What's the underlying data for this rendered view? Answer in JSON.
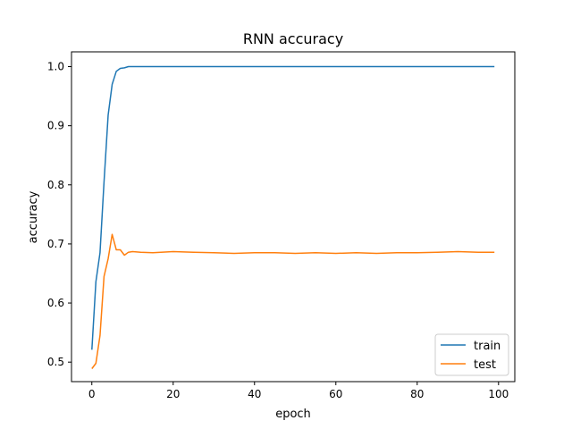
{
  "chart_data": {
    "type": "line",
    "title": "RNN accuracy",
    "xlabel": "epoch",
    "ylabel": "accuracy",
    "xlim": [
      -5,
      104
    ],
    "ylim": [
      0.467,
      1.025
    ],
    "xticks": [
      0,
      20,
      40,
      60,
      80,
      100
    ],
    "yticks": [
      0.5,
      0.6,
      0.7,
      0.8,
      0.9,
      1.0
    ],
    "xtick_labels": [
      "0",
      "20",
      "40",
      "60",
      "80",
      "100"
    ],
    "ytick_labels": [
      "0.5",
      "0.6",
      "0.7",
      "0.8",
      "0.9",
      "1.0"
    ],
    "grid": false,
    "legend_position": "bottom-right",
    "series": [
      {
        "name": "train",
        "color": "#1f77b4",
        "x": [
          0,
          1,
          2,
          3,
          4,
          5,
          6,
          7,
          8,
          9,
          10,
          15,
          20,
          25,
          30,
          35,
          40,
          45,
          50,
          55,
          60,
          65,
          70,
          75,
          80,
          85,
          90,
          95,
          99
        ],
        "y": [
          0.521,
          0.636,
          0.685,
          0.805,
          0.918,
          0.97,
          0.992,
          0.997,
          0.998,
          1.0,
          1.0,
          1.0,
          1.0,
          1.0,
          1.0,
          1.0,
          1.0,
          1.0,
          1.0,
          1.0,
          1.0,
          1.0,
          1.0,
          1.0,
          1.0,
          1.0,
          1.0,
          1.0,
          1.0
        ]
      },
      {
        "name": "test",
        "color": "#ff7f0e",
        "x": [
          0,
          1,
          2,
          3,
          4,
          5,
          6,
          7,
          8,
          9,
          10,
          12,
          15,
          20,
          25,
          30,
          35,
          40,
          45,
          50,
          55,
          60,
          65,
          70,
          75,
          80,
          85,
          90,
          95,
          99
        ],
        "y": [
          0.489,
          0.498,
          0.545,
          0.645,
          0.675,
          0.716,
          0.69,
          0.69,
          0.681,
          0.686,
          0.687,
          0.686,
          0.685,
          0.687,
          0.686,
          0.685,
          0.684,
          0.685,
          0.685,
          0.684,
          0.685,
          0.684,
          0.685,
          0.684,
          0.685,
          0.685,
          0.686,
          0.687,
          0.686,
          0.686
        ]
      }
    ]
  }
}
